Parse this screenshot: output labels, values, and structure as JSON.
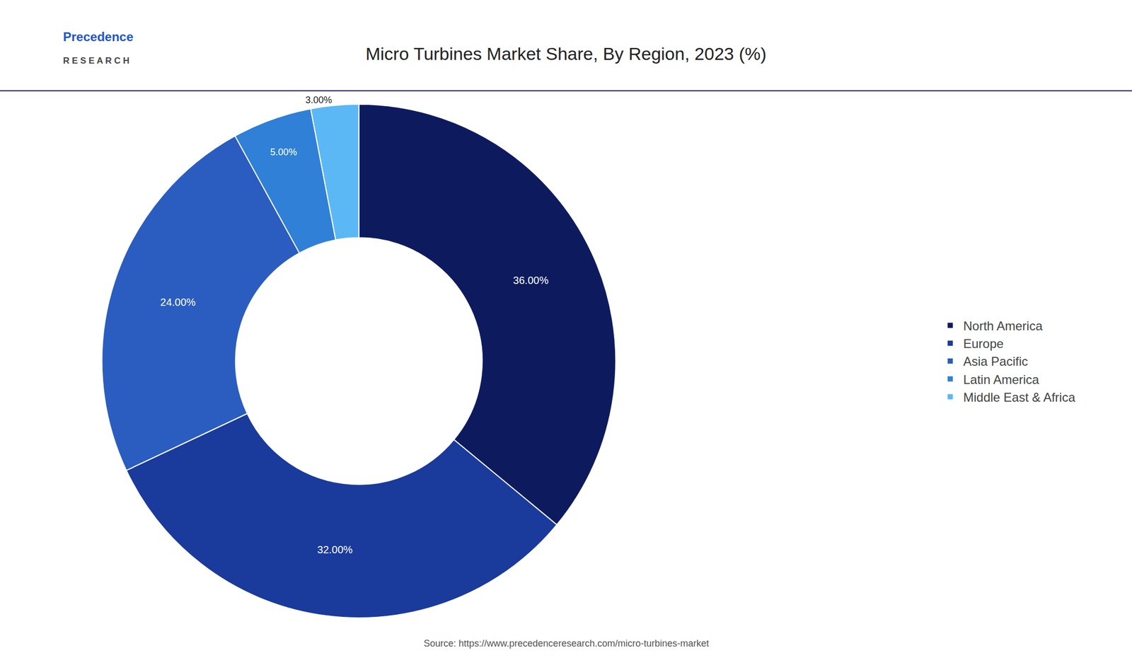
{
  "chart_data": {
    "type": "pie",
    "title": "Micro Turbines Market Share, By Region, 2023 (%)",
    "categories": [
      "North America",
      "Europe",
      "Asia Pacific",
      "Latin America",
      "Middle East & Africa"
    ],
    "values": [
      36.0,
      32.0,
      24.0,
      5.0,
      3.0
    ],
    "value_labels": [
      "36.00%",
      "32.00%",
      "24.00%",
      "5.00%",
      "3.00%"
    ],
    "colors": [
      "#0d1b5e",
      "#1a3a9c",
      "#2a5dbf",
      "#2f80d6",
      "#5bb8f5"
    ],
    "data_labels": true,
    "legend": "right",
    "annotations": [
      "Precedence",
      "R E S E A R C H",
      "Source: https://www.precedenceresearch.com/micro-turbines-market"
    ]
  }
}
